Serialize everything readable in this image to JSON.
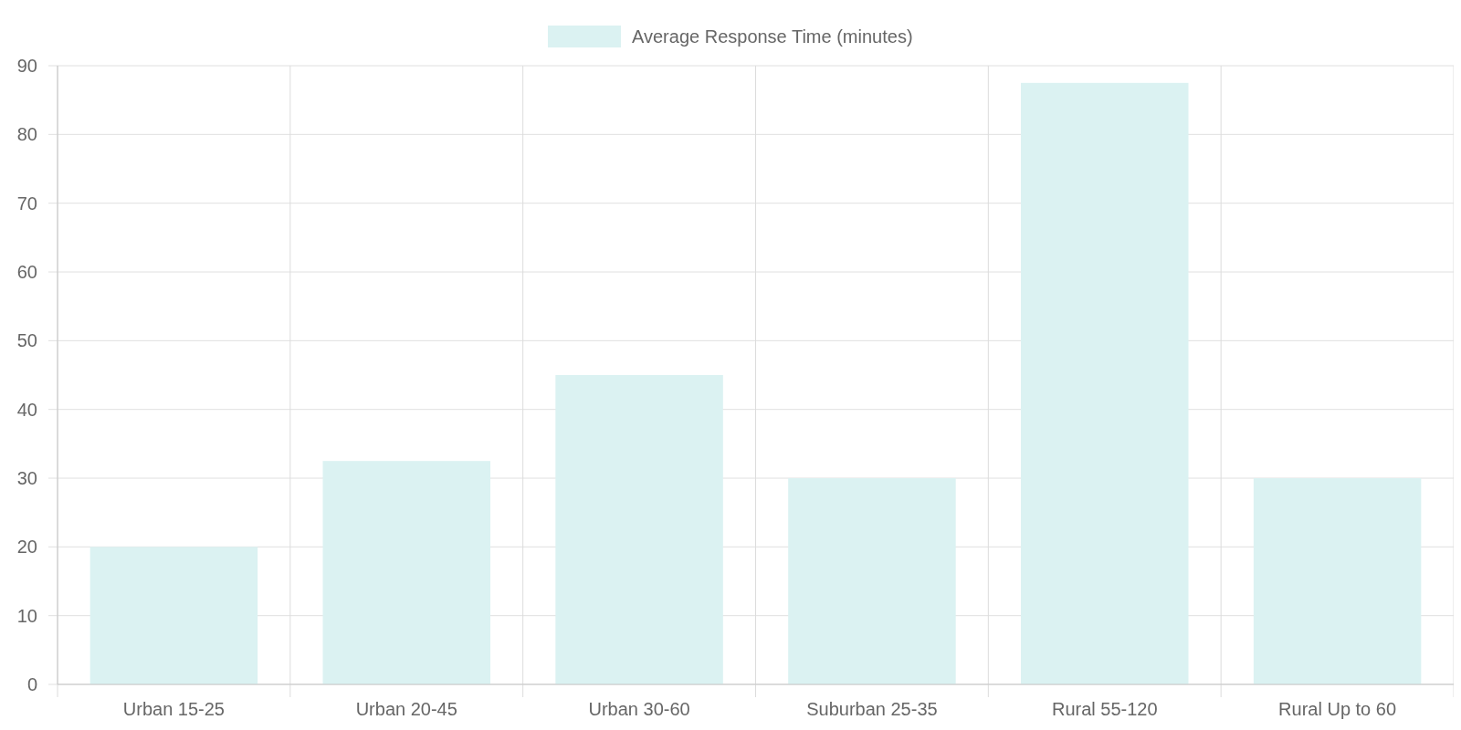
{
  "chart_data": {
    "type": "bar",
    "categories": [
      "Urban 15-25",
      "Urban 20-45",
      "Urban 30-60",
      "Suburban 25-35",
      "Rural 55-120",
      "Rural Up to 60"
    ],
    "series": [
      {
        "name": "Average Response Time (minutes)",
        "color": "#dbf2f2",
        "values": [
          20,
          32.5,
          45,
          30,
          87.5,
          30
        ]
      }
    ],
    "ylim": [
      0,
      90
    ],
    "yticks": [
      0,
      10,
      20,
      30,
      40,
      50,
      60,
      70,
      80,
      90
    ],
    "grid": true,
    "legend": "top"
  }
}
